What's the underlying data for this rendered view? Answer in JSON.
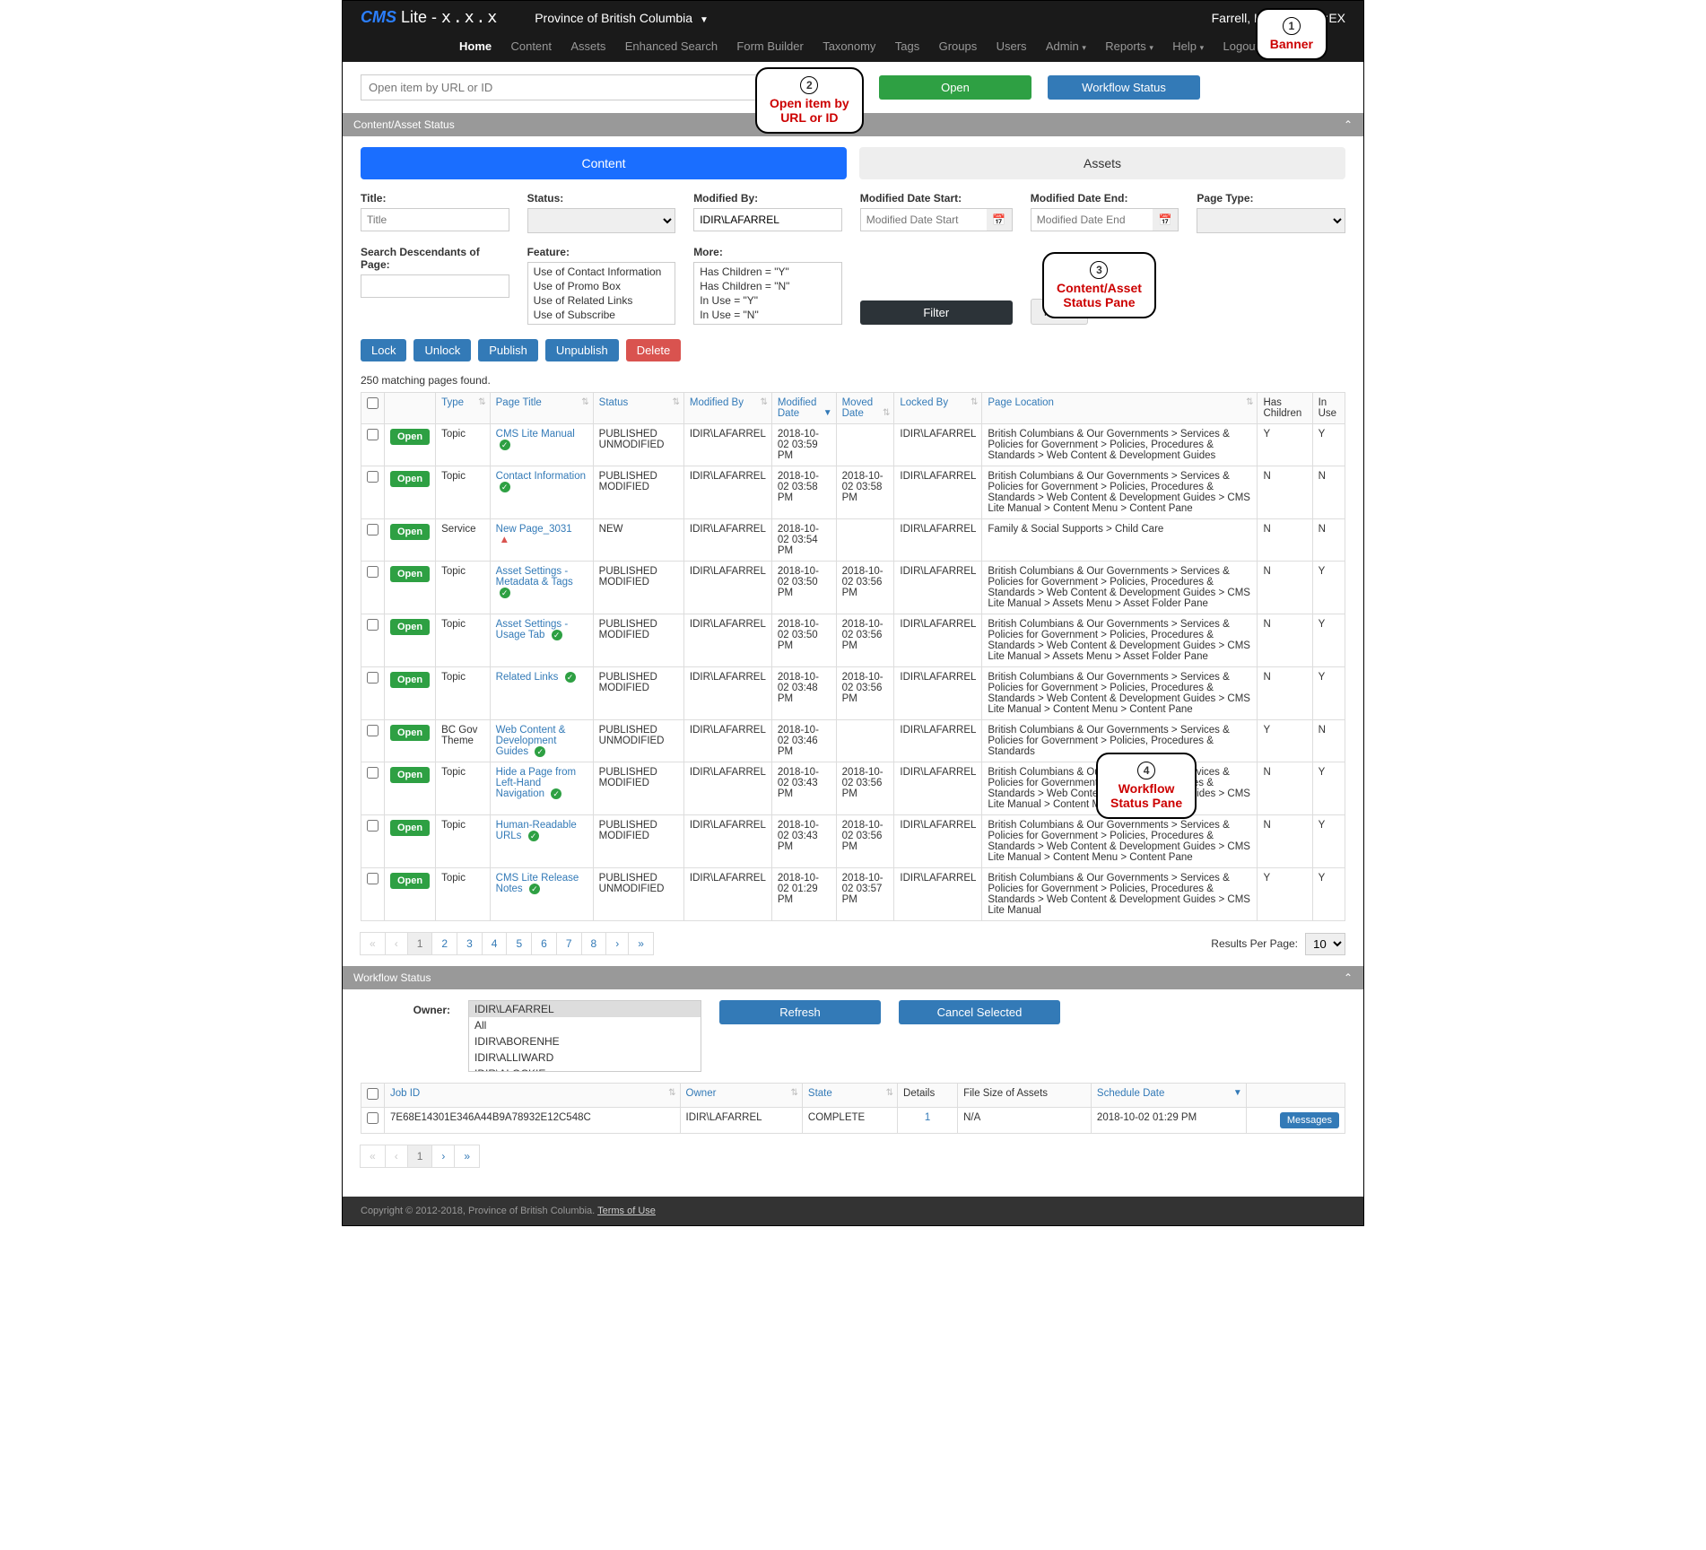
{
  "brand": {
    "cms": "CMS",
    "lite": " Lite - ",
    "version": "x.x.x"
  },
  "province": "Province of British Columbia",
  "user": "Farrell, Laura GCPE:EX",
  "nav": {
    "home": "Home",
    "content": "Content",
    "assets": "Assets",
    "enhanced_search": "Enhanced Search",
    "form_builder": "Form Builder",
    "taxonomy": "Taxonomy",
    "tags": "Tags",
    "groups": "Groups",
    "users": "Users",
    "admin": "Admin",
    "reports": "Reports",
    "help": "Help",
    "logout": "Logout"
  },
  "callouts": {
    "c1": {
      "num": "1",
      "txt": "Banner"
    },
    "c2": {
      "num": "2",
      "txt": "Open item by URL or ID"
    },
    "c3": {
      "num": "3",
      "txt": "Content/Asset Status Pane"
    },
    "c4": {
      "num": "4",
      "txt": "Workflow Status Pane"
    }
  },
  "openbar": {
    "placeholder": "Open item by URL or ID",
    "open": "Open",
    "workflow": "Workflow Status"
  },
  "pane1": {
    "title": "Content/Asset Status"
  },
  "tabs": {
    "content": "Content",
    "assets": "Assets"
  },
  "filters": {
    "title_label": "Title:",
    "title_placeholder": "Title",
    "status_label": "Status:",
    "modby_label": "Modified By:",
    "modby_value": "IDIR\\LAFARREL",
    "mds_label": "Modified Date Start:",
    "mds_placeholder": "Modified Date Start",
    "mde_label": "Modified Date End:",
    "mde_placeholder": "Modified Date End",
    "pagetype_label": "Page Type:",
    "sdop_label": "Search Descendants of Page:",
    "feature_label": "Feature:",
    "feature_opts": [
      "Use of Contact Information",
      "Use of Promo Box",
      "Use of Related Links",
      "Use of Subscribe"
    ],
    "more_label": "More:",
    "more_opts": [
      "Has Children = \"Y\"",
      "Has Children = \"N\"",
      "In Use = \"Y\"",
      "In Use = \"N\""
    ],
    "filter": "Filter",
    "reset": "Reset"
  },
  "actions": {
    "lock": "Lock",
    "unlock": "Unlock",
    "publish": "Publish",
    "unpublish": "Unpublish",
    "delete": "Delete"
  },
  "results_count": "250 matching pages found.",
  "cols": {
    "type": "Type",
    "page_title": "Page Title",
    "status": "Status",
    "modified_by": "Modified By",
    "modified_date": "Modified Date",
    "moved_date": "Moved Date",
    "locked_by": "Locked By",
    "page_location": "Page Location",
    "has_children": "Has Children",
    "in_use": "In Use"
  },
  "open_btn": "Open",
  "rows": [
    {
      "type": "Topic",
      "title": "CMS Lite Manual",
      "icon": "ok",
      "status": "PUBLISHED UNMODIFIED",
      "modby": "IDIR\\LAFARREL",
      "moddate": "2018-10-02 03:59 PM",
      "moved": "",
      "locked": "IDIR\\LAFARREL",
      "loc": "British Columbians & Our Governments > Services & Policies for Government > Policies, Procedures & Standards > Web Content & Development Guides",
      "hc": "Y",
      "iu": "Y"
    },
    {
      "type": "Topic",
      "title": "Contact Information",
      "icon": "ok",
      "status": "PUBLISHED MODIFIED",
      "modby": "IDIR\\LAFARREL",
      "moddate": "2018-10-02 03:58 PM",
      "moved": "2018-10-02 03:58 PM",
      "locked": "IDIR\\LAFARREL",
      "loc": "British Columbians & Our Governments > Services & Policies for Government > Policies, Procedures & Standards > Web Content & Development Guides > CMS Lite Manual > Content Menu > Content Pane",
      "hc": "N",
      "iu": "N"
    },
    {
      "type": "Service",
      "title": "New Page_3031",
      "icon": "warn",
      "status": "NEW",
      "modby": "IDIR\\LAFARREL",
      "moddate": "2018-10-02 03:54 PM",
      "moved": "",
      "locked": "IDIR\\LAFARREL",
      "loc": "Family & Social Supports > Child Care",
      "hc": "N",
      "iu": "N"
    },
    {
      "type": "Topic",
      "title": "Asset Settings - Metadata & Tags",
      "icon": "ok",
      "status": "PUBLISHED MODIFIED",
      "modby": "IDIR\\LAFARREL",
      "moddate": "2018-10-02 03:50 PM",
      "moved": "2018-10-02 03:56 PM",
      "locked": "IDIR\\LAFARREL",
      "loc": "British Columbians & Our Governments > Services & Policies for Government > Policies, Procedures & Standards > Web Content & Development Guides > CMS Lite Manual > Assets Menu > Asset Folder Pane",
      "hc": "N",
      "iu": "Y"
    },
    {
      "type": "Topic",
      "title": "Asset Settings - Usage Tab",
      "icon": "ok",
      "status": "PUBLISHED MODIFIED",
      "modby": "IDIR\\LAFARREL",
      "moddate": "2018-10-02 03:50 PM",
      "moved": "2018-10-02 03:56 PM",
      "locked": "IDIR\\LAFARREL",
      "loc": "British Columbians & Our Governments > Services & Policies for Government > Policies, Procedures & Standards > Web Content & Development Guides > CMS Lite Manual > Assets Menu > Asset Folder Pane",
      "hc": "N",
      "iu": "Y"
    },
    {
      "type": "Topic",
      "title": "Related Links",
      "icon": "ok",
      "status": "PUBLISHED MODIFIED",
      "modby": "IDIR\\LAFARREL",
      "moddate": "2018-10-02 03:48 PM",
      "moved": "2018-10-02 03:56 PM",
      "locked": "IDIR\\LAFARREL",
      "loc": "British Columbians & Our Governments > Services & Policies for Government > Policies, Procedures & Standards > Web Content & Development Guides > CMS Lite Manual > Content Menu > Content Pane",
      "hc": "N",
      "iu": "Y"
    },
    {
      "type": "BC Gov Theme",
      "title": "Web Content & Development Guides",
      "icon": "ok",
      "status": "PUBLISHED UNMODIFIED",
      "modby": "IDIR\\LAFARREL",
      "moddate": "2018-10-02 03:46 PM",
      "moved": "",
      "locked": "IDIR\\LAFARREL",
      "loc": "British Columbians & Our Governments > Services & Policies for Government > Policies, Procedures & Standards",
      "hc": "Y",
      "iu": "N"
    },
    {
      "type": "Topic",
      "title": "Hide a Page from Left-Hand Navigation",
      "icon": "ok",
      "status": "PUBLISHED MODIFIED",
      "modby": "IDIR\\LAFARREL",
      "moddate": "2018-10-02 03:43 PM",
      "moved": "2018-10-02 03:56 PM",
      "locked": "IDIR\\LAFARREL",
      "loc": "British Columbians & Our Governments > Services & Policies for Government > Policies, Procedures & Standards > Web Content & Development Guides > CMS Lite Manual > Content Menu > Content Pane",
      "hc": "N",
      "iu": "Y"
    },
    {
      "type": "Topic",
      "title": "Human-Readable URLs",
      "icon": "ok",
      "status": "PUBLISHED MODIFIED",
      "modby": "IDIR\\LAFARREL",
      "moddate": "2018-10-02 03:43 PM",
      "moved": "2018-10-02 03:56 PM",
      "locked": "IDIR\\LAFARREL",
      "loc": "British Columbians & Our Governments > Services & Policies for Government > Policies, Procedures & Standards > Web Content & Development Guides > CMS Lite Manual > Content Menu > Content Pane",
      "hc": "N",
      "iu": "Y"
    },
    {
      "type": "Topic",
      "title": "CMS Lite Release Notes",
      "icon": "ok",
      "status": "PUBLISHED UNMODIFIED",
      "modby": "IDIR\\LAFARREL",
      "moddate": "2018-10-02 01:29 PM",
      "moved": "2018-10-02 03:57 PM",
      "locked": "IDIR\\LAFARREL",
      "loc": "British Columbians & Our Governments > Services & Policies for Government > Policies, Procedures & Standards > Web Content & Development Guides > CMS Lite Manual",
      "hc": "Y",
      "iu": "Y"
    }
  ],
  "pager": {
    "pages": [
      "«",
      "‹",
      "1",
      "2",
      "3",
      "4",
      "5",
      "6",
      "7",
      "8",
      "›",
      "»"
    ],
    "active": "1",
    "rpp_label": "Results Per Page:",
    "rpp_value": "10"
  },
  "pane2": {
    "title": "Workflow Status"
  },
  "wf": {
    "owner_label": "Owner:",
    "owners": [
      "IDIR\\LAFARREL",
      "All",
      "IDIR\\ABORENHE",
      "IDIR\\ALLIWARD",
      "IDIR\\ALOCKIE"
    ],
    "owner_selected": "IDIR\\LAFARREL",
    "refresh": "Refresh",
    "cancel": "Cancel Selected",
    "cols": {
      "jobid": "Job ID",
      "owner": "Owner",
      "state": "State",
      "details": "Details",
      "filesize": "File Size of Assets",
      "schedule": "Schedule Date"
    },
    "row": {
      "jobid": "7E68E14301E346A44B9A78932E12C548C",
      "owner": "IDIR\\LAFARREL",
      "state": "COMPLETE",
      "details": "1",
      "filesize": "N/A",
      "schedule": "2018-10-02 01:29 PM"
    },
    "messages": "Messages",
    "pager": [
      "«",
      "‹",
      "1",
      "›",
      "»"
    ],
    "pager_active": "1"
  },
  "footer": {
    "copy": "Copyright © 2012-2018, Province of British Columbia. ",
    "terms": "Terms of Use"
  }
}
